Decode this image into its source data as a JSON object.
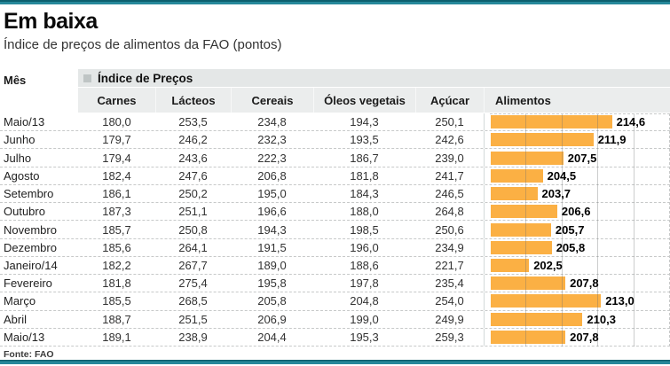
{
  "colors": {
    "accent_teal": "#177989",
    "bar_orange": "#FBB044",
    "header_band": "#E4E7E7"
  },
  "header": {
    "title": "Em baixa",
    "subtitle": "Índice de preços de alimentos da FAO (pontos)"
  },
  "table": {
    "month_header": "Mês",
    "group_header": "Índice de Preços",
    "columns": [
      "Carnes",
      "Lácteos",
      "Cereais",
      "Óleos vegetais",
      "Açúcar",
      "Alimentos"
    ],
    "rows": [
      {
        "month": "Maio/13",
        "carnes": "180,0",
        "lacteos": "253,5",
        "cereais": "234,8",
        "oleos": "194,3",
        "acucar": "250,1",
        "alimentos": "214,6"
      },
      {
        "month": "Junho",
        "carnes": "179,7",
        "lacteos": "246,2",
        "cereais": "232,3",
        "oleos": "193,5",
        "acucar": "242,6",
        "alimentos": "211,9"
      },
      {
        "month": "Julho",
        "carnes": "179,4",
        "lacteos": "243,6",
        "cereais": "222,3",
        "oleos": "186,7",
        "acucar": "239,0",
        "alimentos": "207,5"
      },
      {
        "month": "Agosto",
        "carnes": "182,4",
        "lacteos": "247,6",
        "cereais": "206,8",
        "oleos": "181,8",
        "acucar": "241,7",
        "alimentos": "204,5"
      },
      {
        "month": "Setembro",
        "carnes": "186,1",
        "lacteos": "250,2",
        "cereais": "195,0",
        "oleos": "184,3",
        "acucar": "246,5",
        "alimentos": "203,7"
      },
      {
        "month": "Outubro",
        "carnes": "187,3",
        "lacteos": "251,1",
        "cereais": "196,6",
        "oleos": "188,0",
        "acucar": "264,8",
        "alimentos": "206,6"
      },
      {
        "month": "Novembro",
        "carnes": "185,7",
        "lacteos": "250,8",
        "cereais": "194,3",
        "oleos": "198,5",
        "acucar": "250,6",
        "alimentos": "205,7"
      },
      {
        "month": "Dezembro",
        "carnes": "185,6",
        "lacteos": "264,1",
        "cereais": "191,5",
        "oleos": "196,0",
        "acucar": "234,9",
        "alimentos": "205,8"
      },
      {
        "month": "Janeiro/14",
        "carnes": "182,2",
        "lacteos": "267,7",
        "cereais": "189,0",
        "oleos": "188,6",
        "acucar": "221,7",
        "alimentos": "202,5"
      },
      {
        "month": "Fevereiro",
        "carnes": "181,8",
        "lacteos": "275,4",
        "cereais": "195,8",
        "oleos": "197,8",
        "acucar": "235,4",
        "alimentos": "207,8"
      },
      {
        "month": "Março",
        "carnes": "185,5",
        "lacteos": "268,5",
        "cereais": "205,8",
        "oleos": "204,8",
        "acucar": "254,0",
        "alimentos": "213,0"
      },
      {
        "month": "Abril",
        "carnes": "188,7",
        "lacteos": "251,5",
        "cereais": "206,9",
        "oleos": "199,0",
        "acucar": "249,9",
        "alimentos": "210,3"
      },
      {
        "month": "Maio/13",
        "carnes": "189,1",
        "lacteos": "238,9",
        "cereais": "204,4",
        "oleos": "195,3",
        "acucar": "259,3",
        "alimentos": "207,8"
      }
    ]
  },
  "chart_data": {
    "type": "bar",
    "orientation": "horizontal",
    "title": "Em baixa",
    "subtitle": "Índice de preços de alimentos da FAO (pontos)",
    "categories": [
      "Maio/13",
      "Junho",
      "Julho",
      "Agosto",
      "Setembro",
      "Outubro",
      "Novembro",
      "Dezembro",
      "Janeiro/14",
      "Fevereiro",
      "Março",
      "Abril",
      "Maio/13"
    ],
    "series": [
      {
        "name": "Carnes",
        "values": [
          180.0,
          179.7,
          179.4,
          182.4,
          186.1,
          187.3,
          185.7,
          185.6,
          182.2,
          181.8,
          185.5,
          188.7,
          189.1
        ]
      },
      {
        "name": "Lácteos",
        "values": [
          253.5,
          246.2,
          243.6,
          247.6,
          250.2,
          251.1,
          250.8,
          264.1,
          267.7,
          275.4,
          268.5,
          251.5,
          238.9
        ]
      },
      {
        "name": "Cereais",
        "values": [
          234.8,
          232.3,
          222.3,
          206.8,
          195.0,
          196.6,
          194.3,
          191.5,
          189.0,
          195.8,
          205.8,
          206.9,
          204.4
        ]
      },
      {
        "name": "Óleos vegetais",
        "values": [
          194.3,
          193.5,
          186.7,
          181.8,
          184.3,
          188.0,
          198.5,
          196.0,
          188.6,
          197.8,
          204.8,
          199.0,
          195.3
        ]
      },
      {
        "name": "Açúcar",
        "values": [
          250.1,
          242.6,
          239.0,
          241.7,
          246.5,
          264.8,
          250.6,
          234.9,
          221.7,
          235.4,
          254.0,
          249.9,
          259.3
        ]
      },
      {
        "name": "Alimentos",
        "values": [
          214.6,
          211.9,
          207.5,
          204.5,
          203.7,
          206.6,
          205.7,
          205.8,
          202.5,
          207.8,
          213.0,
          210.3,
          207.8
        ]
      }
    ],
    "plotted_series": "Alimentos",
    "xlim": [
      196.9,
      222.3
    ],
    "grid": "vertical-solid-with-dashed-row-separators",
    "legend_position": "none",
    "source": "Fonte: FAO"
  },
  "footer": {
    "source": "Fonte: FAO"
  }
}
